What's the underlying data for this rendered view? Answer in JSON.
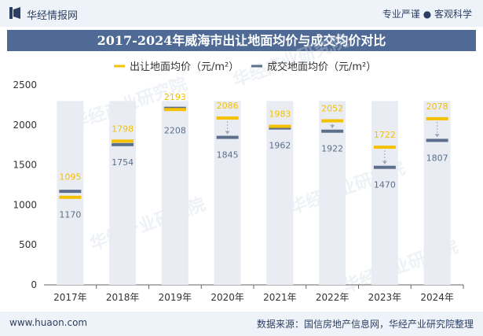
{
  "header": {
    "brand": "华经情报网",
    "tagline": "专业严谨 ● 客观科学"
  },
  "title": "2017-2024年威海市出让地面均价与成交均价对比",
  "footer": {
    "left": "www.huaon.com",
    "right": "数据来源：国信房地产信息网，华经产业研究院整理"
  },
  "watermark": "华经产业研究院",
  "colors": {
    "series1": "#f5c000",
    "series2": "#5b6f8c",
    "band": "#e9edf3",
    "accent": "#4f6b95"
  },
  "chart_data": {
    "type": "line",
    "title": "2017-2024年威海市出让地面均价与成交均价对比",
    "categories": [
      "2017年",
      "2018年",
      "2019年",
      "2020年",
      "2021年",
      "2022年",
      "2023年",
      "2024年"
    ],
    "series": [
      {
        "name": "出让地面均价（元/m²）",
        "values": [
          1095,
          1798,
          2193,
          2086,
          1983,
          2052,
          1722,
          2078
        ],
        "color": "#f5c000"
      },
      {
        "name": "成交地面均价（元/m²）",
        "values": [
          1170,
          1754,
          2208,
          1845,
          1962,
          1922,
          1470,
          1807
        ],
        "color": "#5b6f8c"
      }
    ],
    "yticks": [
      "0",
      "500",
      "1000",
      "1500",
      "2000",
      "2500"
    ],
    "ylim": [
      0,
      2500
    ],
    "grid": false,
    "legend": "top-center"
  }
}
